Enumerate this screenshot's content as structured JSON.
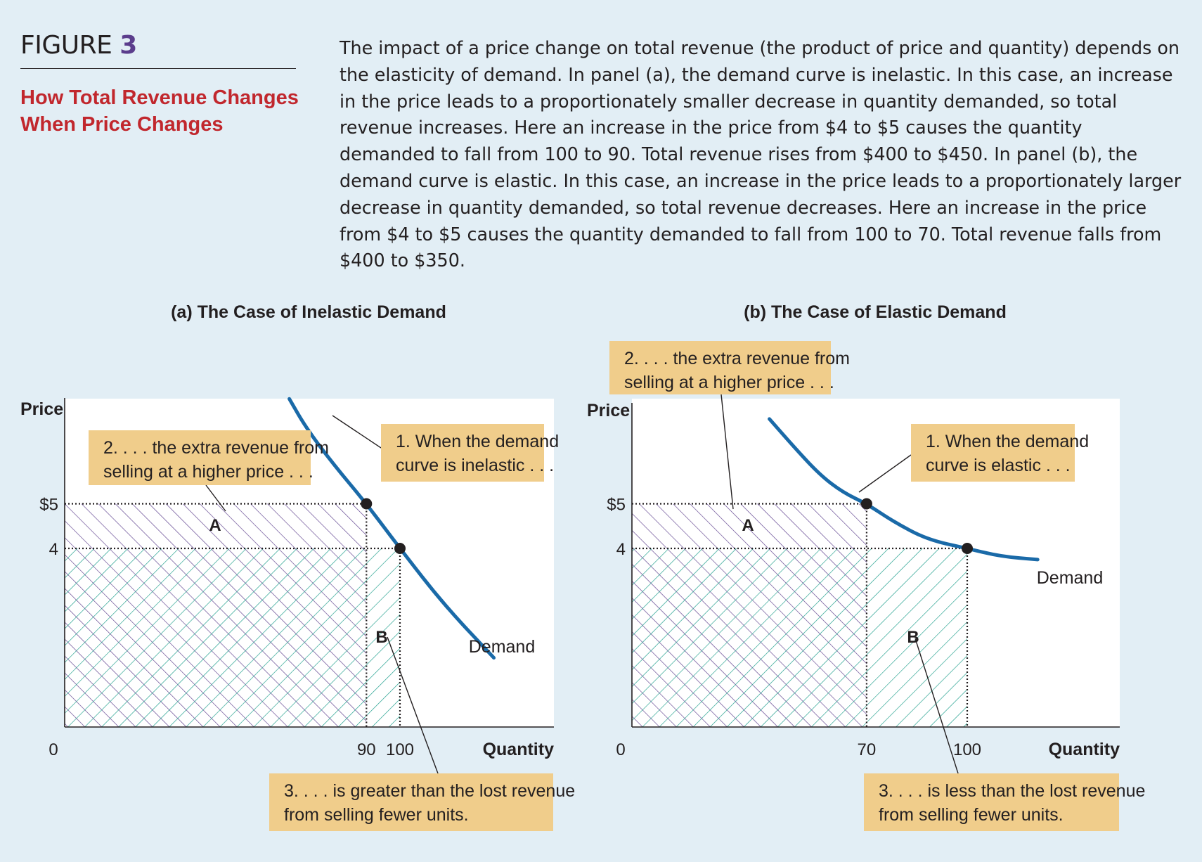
{
  "figure": {
    "label": "FIGURE",
    "number": "3",
    "title_lines": [
      "How Total Revenue Changes",
      "When Price Changes"
    ],
    "caption": "The impact of a price change on total revenue (the product of price and quantity) depends on the elasticity of demand. In panel (a), the demand curve is inelastic. In this case, an increase in the price leads to a proportionately smaller decrease in quantity demanded, so total revenue increases. Here an increase in the price from $4 to $5 causes the quantity demanded to fall from 100 to 90. Total revenue rises from $400 to $450. In panel (b), the demand curve is elastic. In this case, an increase in the price leads to a proportionately larger decrease in quantity demanded, so total revenue decreases. Here an increase in the price from $4 to $5 causes the quantity demanded to fall from 100 to 70. Total revenue falls from $400 to $350."
  },
  "colors": {
    "background": "#e2eef5",
    "plot_background": "#ffffff",
    "demand_curve": "#1a6aa8",
    "area_a_hatch": "#5b3d8c",
    "area_b_hatch": "#1a9d8a",
    "callout_box": "#f0cd8b",
    "title_red": "#c1272d"
  },
  "chart_data": [
    {
      "type": "line",
      "title": "(a) The Case of Inelastic Demand",
      "ylabel": "Price",
      "xlabel": "Quantity",
      "origin_label": "0",
      "y_ticks": [
        {
          "value": 5,
          "label": "$5"
        },
        {
          "value": 4,
          "label": "4"
        }
      ],
      "x_ticks": [
        {
          "value": 90,
          "label": "90"
        },
        {
          "value": 100,
          "label": "100"
        }
      ],
      "series": [
        {
          "name": "Demand",
          "points": [
            [
              67,
              7.35
            ],
            [
              72,
              6.7
            ],
            [
              80,
              5.9
            ],
            [
              90,
              5
            ],
            [
              100,
              4
            ],
            [
              113,
              2.75
            ],
            [
              128,
              1.55
            ]
          ]
        }
      ],
      "points": [
        {
          "x": 90,
          "y": 5
        },
        {
          "x": 100,
          "y": 4
        }
      ],
      "areas": [
        {
          "label": "A",
          "x": [
            0,
            90
          ],
          "y": [
            4,
            5
          ]
        },
        {
          "label": "B",
          "x": [
            90,
            100
          ],
          "y": [
            0,
            4
          ]
        }
      ],
      "annotations": [
        [
          "1. When the demand",
          "curve is inelastic . . ."
        ],
        [
          "2. . . . the extra revenue from",
          "selling at a higher price . . ."
        ],
        [
          "3. . . . is greater than the lost revenue",
          "from selling fewer units."
        ]
      ]
    },
    {
      "type": "line",
      "title": "(b) The Case of Elastic Demand",
      "ylabel": "Price",
      "xlabel": "Quantity",
      "origin_label": "0",
      "y_ticks": [
        {
          "value": 5,
          "label": "$5"
        },
        {
          "value": 4,
          "label": "4"
        }
      ],
      "x_ticks": [
        {
          "value": 70,
          "label": "70"
        },
        {
          "value": 100,
          "label": "100"
        }
      ],
      "series": [
        {
          "name": "Demand",
          "points": [
            [
              41,
              6.9
            ],
            [
              48,
              6.3
            ],
            [
              56,
              5.65
            ],
            [
              63,
              5.25
            ],
            [
              70,
              5
            ],
            [
              78,
              4.6
            ],
            [
              88,
              4.2
            ],
            [
              100,
              4
            ],
            [
              110,
              3.82
            ],
            [
              121,
              3.75
            ]
          ]
        }
      ],
      "points": [
        {
          "x": 70,
          "y": 5
        },
        {
          "x": 100,
          "y": 4
        }
      ],
      "areas": [
        {
          "label": "A",
          "x": [
            0,
            70
          ],
          "y": [
            4,
            5
          ]
        },
        {
          "label": "B",
          "x": [
            70,
            100
          ],
          "y": [
            0,
            4
          ]
        }
      ],
      "annotations": [
        [
          "1. When the demand",
          "curve is elastic . . ."
        ],
        [
          "2. . . . the extra revenue from",
          "selling at a higher price . . ."
        ],
        [
          "3. . . . is less than the lost revenue",
          "from selling fewer units."
        ]
      ]
    }
  ]
}
